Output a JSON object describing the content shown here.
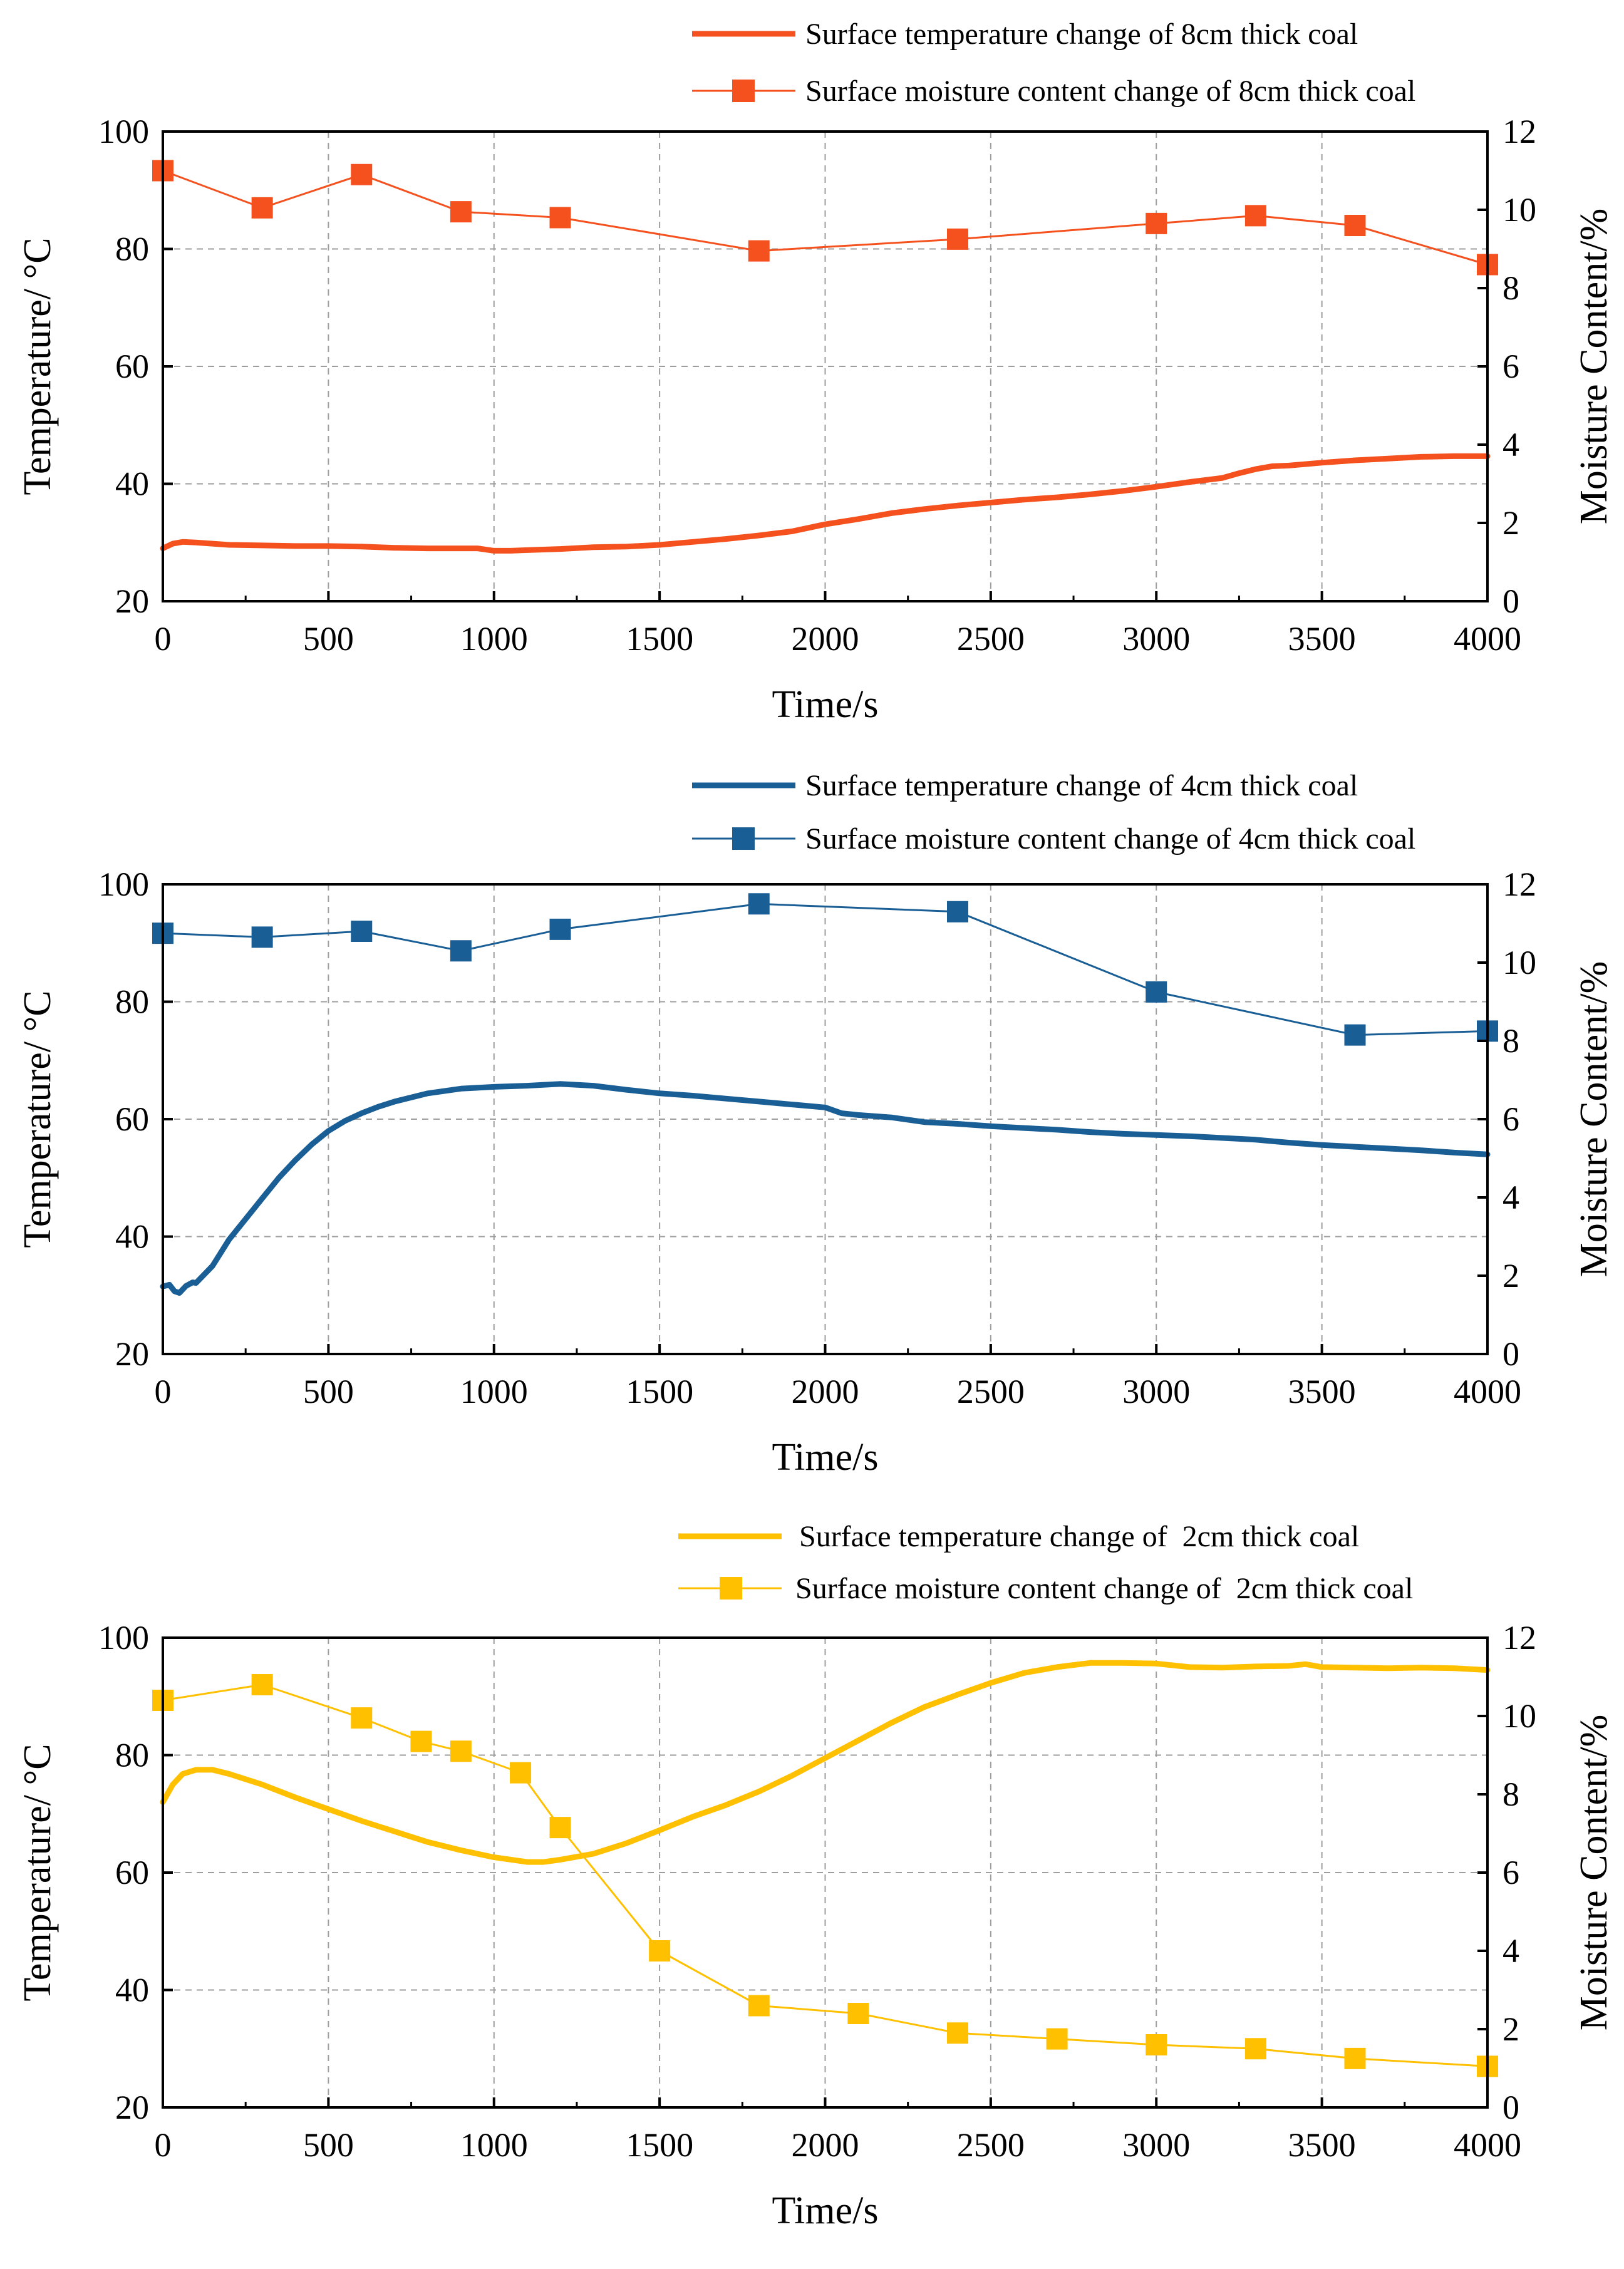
{
  "figure": {
    "panels": 3
  },
  "chart_data": [
    {
      "type": "line",
      "xlabel": "Time/s",
      "ylabel": "Temperature/ °C",
      "y2label": "Moisture Content/%",
      "xlim": [
        0,
        4000
      ],
      "ylim": [
        20,
        100
      ],
      "y2lim": [
        0,
        12
      ],
      "xticks": [
        "0",
        "500",
        "1000",
        "1500",
        "2000",
        "2500",
        "3000",
        "3500",
        "4000"
      ],
      "yticks": [
        "20",
        "40",
        "60",
        "80",
        "100"
      ],
      "y2ticks": [
        "0",
        "2",
        "4",
        "6",
        "8",
        "10",
        "12"
      ],
      "grid": true,
      "legend_position": "top-right, above plot",
      "color": "#f4511e",
      "series": [
        {
          "name": "Surface temperature change of 8cm thick coal",
          "axis": "left",
          "marker": "none",
          "x": [
            0,
            30,
            60,
            100,
            200,
            300,
            400,
            500,
            600,
            700,
            800,
            900,
            950,
            1000,
            1050,
            1100,
            1200,
            1300,
            1400,
            1500,
            1600,
            1700,
            1800,
            1900,
            2000,
            2100,
            2200,
            2300,
            2400,
            2500,
            2600,
            2700,
            2800,
            2900,
            3000,
            3100,
            3200,
            3250,
            3300,
            3350,
            3400,
            3500,
            3600,
            3700,
            3800,
            3900,
            4000
          ],
          "values": [
            29,
            29.8,
            30.1,
            30,
            29.6,
            29.5,
            29.4,
            29.4,
            29.3,
            29.1,
            29,
            29,
            29,
            28.6,
            28.6,
            28.7,
            28.9,
            29.2,
            29.3,
            29.6,
            30.1,
            30.6,
            31.2,
            31.9,
            33.1,
            34,
            35,
            35.7,
            36.3,
            36.8,
            37.3,
            37.7,
            38.2,
            38.8,
            39.5,
            40.3,
            41,
            41.8,
            42.5,
            43,
            43.1,
            43.6,
            44,
            44.3,
            44.6,
            44.7,
            44.7
          ]
        },
        {
          "name": "Surface moisture content change of 8cm thick coal",
          "axis": "right",
          "marker": "square",
          "x": [
            0,
            300,
            600,
            900,
            1200,
            1800,
            2400,
            3000,
            3300,
            3600,
            4000
          ],
          "values": [
            11,
            10.05,
            10.9,
            9.95,
            9.8,
            8.95,
            9.25,
            9.65,
            9.85,
            9.6,
            8.6
          ]
        }
      ]
    },
    {
      "type": "line",
      "xlabel": "Time/s",
      "ylabel": "Temperature/ °C",
      "y2label": "Moisture Content/%",
      "xlim": [
        0,
        4000
      ],
      "ylim": [
        20,
        100
      ],
      "y2lim": [
        0,
        12
      ],
      "xticks": [
        "0",
        "500",
        "1000",
        "1500",
        "2000",
        "2500",
        "3000",
        "3500",
        "4000"
      ],
      "yticks": [
        "20",
        "40",
        "60",
        "80",
        "100"
      ],
      "y2ticks": [
        "0",
        "2",
        "4",
        "6",
        "8",
        "10",
        "12"
      ],
      "grid": true,
      "legend_position": "top-right, above plot",
      "color": "#1a5e96",
      "series": [
        {
          "name": "Surface temperature change of 4cm thick coal",
          "axis": "left",
          "marker": "none",
          "x": [
            0,
            20,
            35,
            50,
            70,
            90,
            100,
            150,
            200,
            250,
            300,
            350,
            400,
            450,
            500,
            550,
            600,
            650,
            700,
            800,
            900,
            1000,
            1100,
            1200,
            1300,
            1400,
            1500,
            1600,
            1700,
            1800,
            1900,
            2000,
            2050,
            2100,
            2200,
            2300,
            2400,
            2500,
            2600,
            2700,
            2800,
            2900,
            3000,
            3100,
            3200,
            3300,
            3400,
            3500,
            3600,
            3700,
            3800,
            3900,
            4000
          ],
          "values": [
            31.5,
            31.8,
            30.7,
            30.4,
            31.6,
            32.2,
            32.1,
            35,
            39.5,
            43,
            46.5,
            50,
            53,
            55.7,
            58,
            59.7,
            61,
            62.1,
            63,
            64.4,
            65.2,
            65.5,
            65.7,
            66,
            65.7,
            65,
            64.4,
            64,
            63.5,
            63,
            62.5,
            62,
            61,
            60.7,
            60.3,
            59.5,
            59.2,
            58.8,
            58.5,
            58.2,
            57.8,
            57.5,
            57.3,
            57.1,
            56.8,
            56.5,
            56,
            55.6,
            55.3,
            55,
            54.7,
            54.3,
            54
          ]
        },
        {
          "name": "Surface moisture content change of 4cm thick coal",
          "axis": "right",
          "marker": "square",
          "x": [
            0,
            300,
            600,
            900,
            1200,
            1800,
            2400,
            3000,
            3600,
            4000
          ],
          "values": [
            10.75,
            10.65,
            10.8,
            10.3,
            10.85,
            11.5,
            11.3,
            9.25,
            8.15,
            8.25
          ]
        }
      ]
    },
    {
      "type": "line",
      "xlabel": "Time/s",
      "ylabel": "Temperature/ °C",
      "y2label": "Moisture Content/%",
      "xlim": [
        0,
        4000
      ],
      "ylim": [
        20,
        100
      ],
      "y2lim": [
        0,
        12
      ],
      "xticks": [
        "0",
        "500",
        "1000",
        "1500",
        "2000",
        "2500",
        "3000",
        "3500",
        "4000"
      ],
      "yticks": [
        "20",
        "40",
        "60",
        "80",
        "100"
      ],
      "y2ticks": [
        "0",
        "2",
        "4",
        "6",
        "8",
        "10",
        "12"
      ],
      "grid": true,
      "legend_position": "top-right, above plot",
      "color": "#ffc000",
      "series": [
        {
          "name": "Surface temperature change of  2cm thick coal",
          "axis": "left",
          "marker": "none",
          "x": [
            0,
            30,
            60,
            100,
            150,
            200,
            300,
            400,
            500,
            600,
            700,
            800,
            900,
            1000,
            1100,
            1150,
            1200,
            1300,
            1400,
            1500,
            1600,
            1700,
            1800,
            1900,
            2000,
            2100,
            2200,
            2300,
            2400,
            2500,
            2600,
            2700,
            2800,
            2900,
            3000,
            3100,
            3200,
            3300,
            3400,
            3450,
            3500,
            3600,
            3700,
            3800,
            3900,
            4000
          ],
          "values": [
            72,
            75,
            76.8,
            77.5,
            77.5,
            76.8,
            75,
            72.8,
            70.8,
            68.8,
            67,
            65.2,
            63.8,
            62.6,
            61.8,
            61.8,
            62.2,
            63.2,
            65,
            67.2,
            69.5,
            71.5,
            73.8,
            76.5,
            79.5,
            82.5,
            85.5,
            88.2,
            90.3,
            92.3,
            94,
            95,
            95.7,
            95.7,
            95.6,
            95,
            94.9,
            95.1,
            95.2,
            95.5,
            95,
            94.9,
            94.8,
            94.9,
            94.8,
            94.5
          ]
        },
        {
          "name": "Surface moisture content change of  2cm thick coal",
          "axis": "right",
          "marker": "square",
          "x": [
            0,
            300,
            600,
            780,
            900,
            1080,
            1200,
            1500,
            1800,
            2100,
            2400,
            2700,
            3000,
            3300,
            3600,
            4000
          ],
          "values": [
            10.4,
            10.8,
            9.95,
            9.35,
            9.1,
            8.55,
            7.15,
            4,
            2.6,
            2.4,
            1.9,
            1.75,
            1.6,
            1.5,
            1.25,
            1.05
          ]
        }
      ]
    }
  ]
}
